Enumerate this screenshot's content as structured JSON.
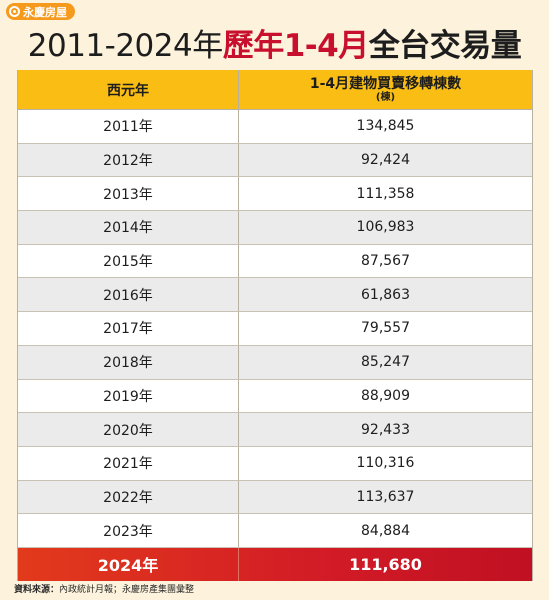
{
  "logo": {
    "text": "永慶房屋"
  },
  "title": {
    "years": "2011-2024年",
    "highlight": "歷年1-4月",
    "rest": "全台交易量"
  },
  "table": {
    "headers": {
      "year": "西元年",
      "count": "1-4月建物買賣移轉棟數",
      "unit": "(棟)"
    },
    "rows": [
      {
        "year": "2011年",
        "count": "134,845"
      },
      {
        "year": "2012年",
        "count": "92,424"
      },
      {
        "year": "2013年",
        "count": "111,358"
      },
      {
        "year": "2014年",
        "count": "106,983"
      },
      {
        "year": "2015年",
        "count": "87,567"
      },
      {
        "year": "2016年",
        "count": "61,863"
      },
      {
        "year": "2017年",
        "count": "79,557"
      },
      {
        "year": "2018年",
        "count": "85,247"
      },
      {
        "year": "2019年",
        "count": "88,909"
      },
      {
        "year": "2020年",
        "count": "92,433"
      },
      {
        "year": "2021年",
        "count": "110,316"
      },
      {
        "year": "2022年",
        "count": "113,637"
      },
      {
        "year": "2023年",
        "count": "84,884"
      },
      {
        "year": "2024年",
        "count": "111,680"
      }
    ]
  },
  "source": {
    "label": "資料來源：",
    "text": "內政統計月報；永慶房產集團彙整"
  },
  "colors": {
    "header_bg": "#f9bd14",
    "highlight_text": "#c8102e",
    "last_row_bg": "#d21b26",
    "page_bg": "#fdf3dc",
    "logo_bg": "#f59a1c"
  }
}
